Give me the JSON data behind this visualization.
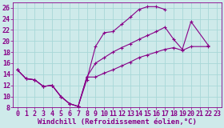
{
  "xlabel": "Windchill (Refroidissement éolien,°C)",
  "bg_color": "#ceeaea",
  "grid_color": "#a8d8d8",
  "line_color": "#880088",
  "xlim": [
    -0.5,
    23.5
  ],
  "ylim": [
    8,
    27
  ],
  "xticks": [
    0,
    1,
    2,
    3,
    4,
    5,
    6,
    7,
    8,
    9,
    10,
    11,
    12,
    13,
    14,
    15,
    16,
    17,
    18,
    19,
    20,
    21,
    22,
    23
  ],
  "yticks": [
    8,
    10,
    12,
    14,
    16,
    18,
    20,
    22,
    24,
    26
  ],
  "line1_x": [
    0,
    1,
    2,
    3,
    4,
    5,
    6,
    7,
    8,
    9,
    10,
    11,
    12,
    13,
    14,
    15,
    16,
    17
  ],
  "line1_y": [
    14.8,
    13.2,
    13.0,
    11.8,
    12.0,
    10.0,
    8.7,
    8.2,
    13.0,
    19.0,
    21.5,
    21.7,
    23.0,
    24.3,
    25.7,
    26.2,
    26.2,
    25.7
  ],
  "line2_x": [
    0,
    1,
    2,
    3,
    4,
    5,
    6,
    7,
    8,
    9,
    10,
    11,
    12,
    13,
    14,
    15,
    16,
    17,
    18,
    19,
    20,
    22
  ],
  "line2_y": [
    14.8,
    13.2,
    13.0,
    11.8,
    12.0,
    10.0,
    8.7,
    8.2,
    13.5,
    16.0,
    17.0,
    18.0,
    18.8,
    19.5,
    20.3,
    21.0,
    21.7,
    22.5,
    20.3,
    18.5,
    23.5,
    19.2
  ],
  "line3_x": [
    0,
    1,
    2,
    3,
    4,
    5,
    6,
    7,
    8,
    9,
    10,
    11,
    12,
    13,
    14,
    15,
    16,
    17,
    18,
    19,
    20,
    22
  ],
  "line3_y": [
    14.8,
    13.2,
    13.0,
    11.8,
    12.0,
    10.0,
    8.7,
    8.2,
    13.5,
    13.5,
    14.2,
    14.8,
    15.5,
    16.2,
    17.0,
    17.5,
    18.0,
    18.5,
    18.8,
    18.3,
    19.0,
    19.0
  ],
  "xlabel_fontsize": 6.5,
  "tick_fontsize": 6
}
